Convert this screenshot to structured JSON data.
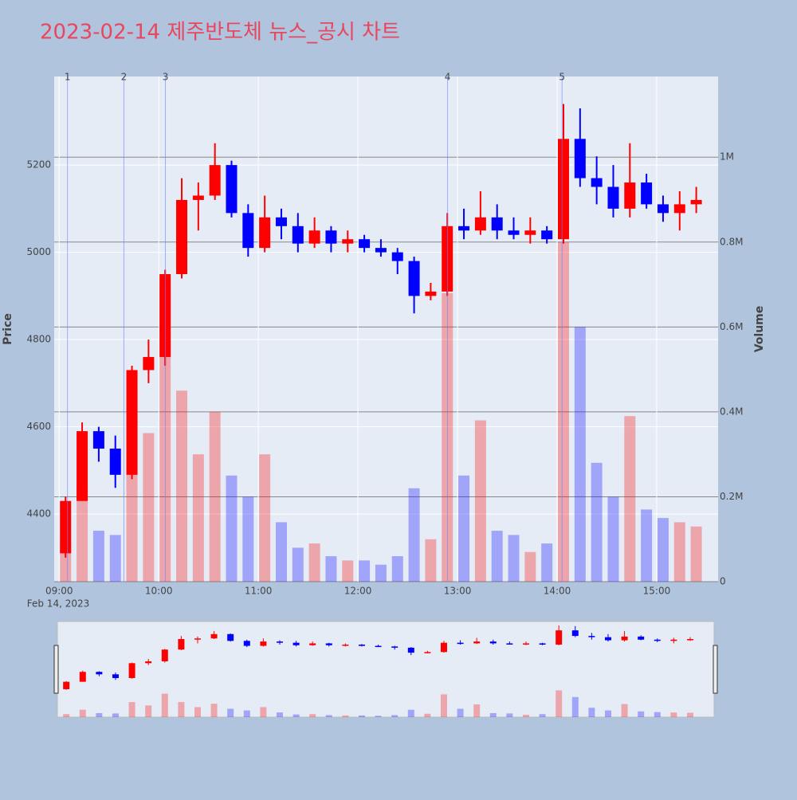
{
  "chart_data": {
    "type": "candlestick",
    "title": "2023-02-14 제주반도체 뉴스_공시 차트",
    "y_label": "Price",
    "y2_label": "Volume",
    "x_sublabel": "Feb 14, 2023",
    "increasing_color": "#ff0000",
    "decreasing_color": "#0000ff",
    "xlim": [
      "08:57",
      "15:37"
    ],
    "xticks": [
      "09:00",
      "10:00",
      "11:00",
      "12:00",
      "13:00",
      "14:00",
      "15:00"
    ],
    "ylim": [
      4245,
      5403
    ],
    "yticks": [
      4400,
      4600,
      4800,
      5000,
      5200
    ],
    "y2lim": [
      0,
      1190000
    ],
    "y2ticks": [
      0,
      {
        "value": 200000,
        "label": "0.2M"
      },
      {
        "value": 400000,
        "label": "0.4M"
      },
      {
        "value": 600000,
        "label": "0.6M"
      },
      {
        "value": 800000,
        "label": "0.8M"
      },
      {
        "value": 1000000,
        "label": "1M"
      }
    ],
    "events": [
      {
        "x": "09:05",
        "label": "1"
      },
      {
        "x": "09:39",
        "label": "2"
      },
      {
        "x": "10:04",
        "label": "3"
      },
      {
        "x": "12:54",
        "label": "4"
      },
      {
        "x": "14:03",
        "label": "5"
      }
    ],
    "x": [
      "09:00",
      "09:10",
      "09:20",
      "09:30",
      "09:40",
      "09:50",
      "10:00",
      "10:10",
      "10:20",
      "10:30",
      "10:40",
      "10:50",
      "11:00",
      "11:10",
      "11:20",
      "11:30",
      "11:40",
      "11:50",
      "12:00",
      "12:10",
      "12:20",
      "12:30",
      "12:40",
      "12:50",
      "13:00",
      "13:10",
      "13:20",
      "13:30",
      "13:40",
      "13:50",
      "14:00",
      "14:10",
      "14:20",
      "14:30",
      "14:40",
      "14:50",
      "15:00",
      "15:10",
      "15:20"
    ],
    "open": [
      4310,
      4430,
      4590,
      4550,
      4490,
      4730,
      4760,
      4950,
      5120,
      5130,
      5200,
      5090,
      5010,
      5080,
      5060,
      5020,
      5050,
      5020,
      5030,
      5010,
      5000,
      4980,
      4900,
      4910,
      5060,
      5050,
      5080,
      5050,
      5040,
      5050,
      5030,
      5260,
      5170,
      5150,
      5100,
      5160,
      5110,
      5090,
      5110
    ],
    "high": [
      4440,
      4610,
      4600,
      4580,
      4740,
      4800,
      4960,
      5170,
      5160,
      5250,
      5210,
      5110,
      5130,
      5100,
      5090,
      5080,
      5060,
      5050,
      5040,
      5030,
      5010,
      4990,
      4930,
      5090,
      5100,
      5140,
      5110,
      5080,
      5080,
      5060,
      5340,
      5330,
      5220,
      5200,
      5250,
      5180,
      5130,
      5140,
      5150
    ],
    "low": [
      4300,
      4430,
      4520,
      4460,
      4480,
      4700,
      4740,
      4940,
      5050,
      5120,
      5080,
      4990,
      5000,
      5030,
      5000,
      5010,
      5000,
      5000,
      5000,
      4990,
      4950,
      4860,
      4890,
      4900,
      5030,
      5040,
      5030,
      5030,
      5020,
      5020,
      5020,
      5150,
      5110,
      5080,
      5080,
      5100,
      5070,
      5050,
      5090
    ],
    "close": [
      4430,
      4590,
      4550,
      4490,
      4730,
      4760,
      4950,
      5120,
      5130,
      5200,
      5090,
      5010,
      5080,
      5060,
      5020,
      5050,
      5020,
      5030,
      5010,
      5000,
      4980,
      4900,
      4910,
      5060,
      5050,
      5080,
      5050,
      5040,
      5050,
      5030,
      5260,
      5170,
      5150,
      5100,
      5160,
      5110,
      5090,
      5110,
      5120
    ],
    "volume": [
      90000,
      220000,
      120000,
      110000,
      450000,
      350000,
      700000,
      450000,
      300000,
      400000,
      250000,
      200000,
      300000,
      140000,
      80000,
      90000,
      60000,
      50000,
      50000,
      40000,
      60000,
      220000,
      100000,
      680000,
      250000,
      380000,
      120000,
      110000,
      70000,
      90000,
      800000,
      600000,
      280000,
      200000,
      390000,
      170000,
      150000,
      140000,
      130000
    ]
  }
}
